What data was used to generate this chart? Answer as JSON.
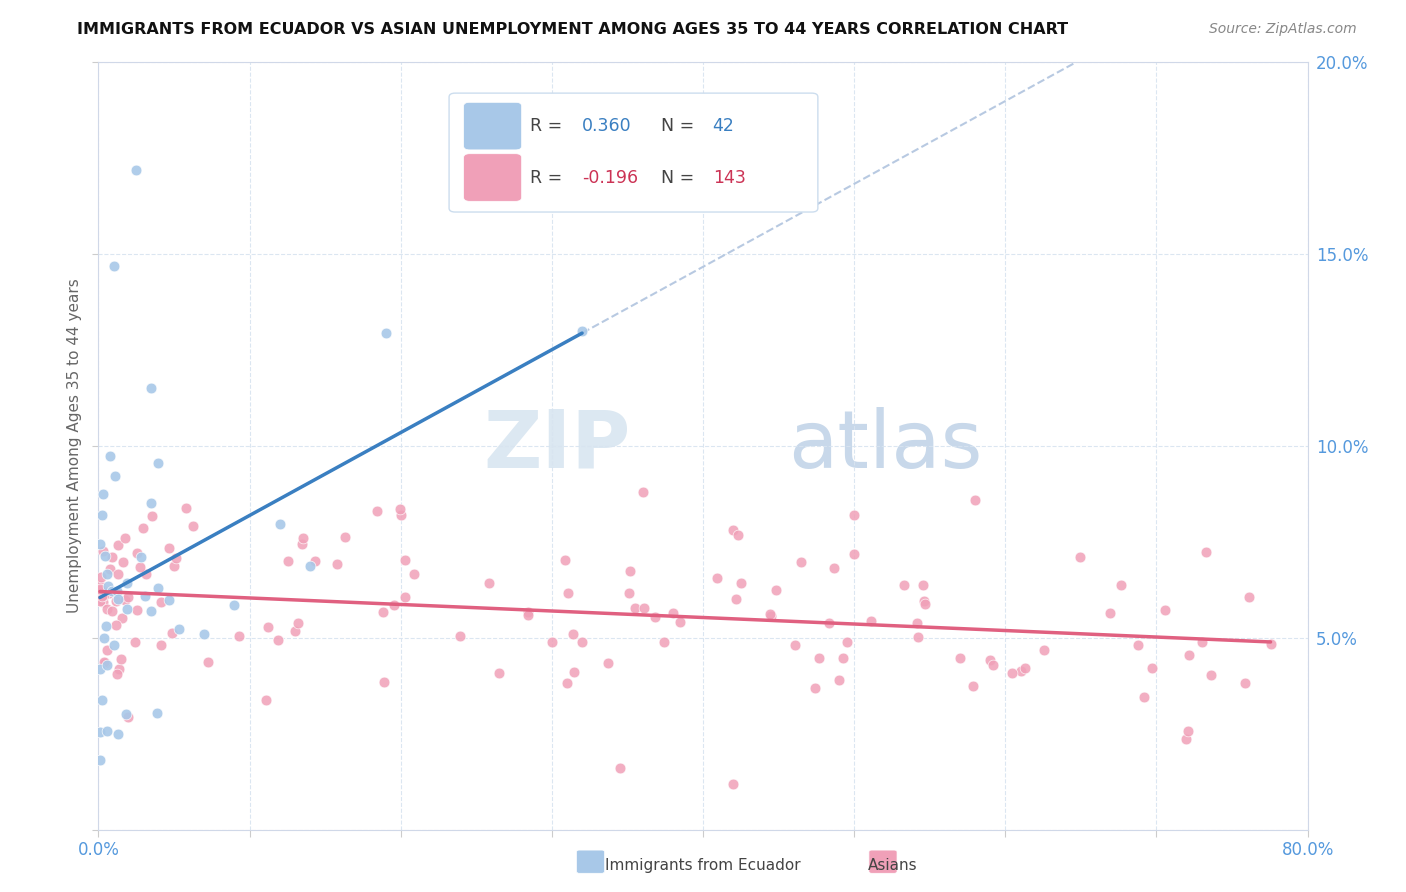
{
  "title": "IMMIGRANTS FROM ECUADOR VS ASIAN UNEMPLOYMENT AMONG AGES 35 TO 44 YEARS CORRELATION CHART",
  "source": "Source: ZipAtlas.com",
  "ylabel": "Unemployment Among Ages 35 to 44 years",
  "xlim": [
    0,
    0.8
  ],
  "ylim": [
    0,
    0.2
  ],
  "ecuador_R": 0.36,
  "ecuador_N": 42,
  "asian_R": -0.196,
  "asian_N": 143,
  "ecuador_color": "#a8c8e8",
  "ecuador_line_color": "#3a7fc1",
  "asian_color": "#f0a0b8",
  "asian_line_color": "#e06080",
  "dash_line_color": "#a0b8d8",
  "background_color": "#ffffff",
  "legend_R_color_ecuador": "#3a7fc1",
  "legend_R_color_asian": "#cc3355",
  "title_color": "#111111",
  "source_color": "#888888",
  "ylabel_color": "#666666",
  "tick_color": "#5599dd",
  "grid_color": "#d8e4f0",
  "watermark_zip_color": "#dce8f2",
  "watermark_atlas_color": "#c8d8ea"
}
